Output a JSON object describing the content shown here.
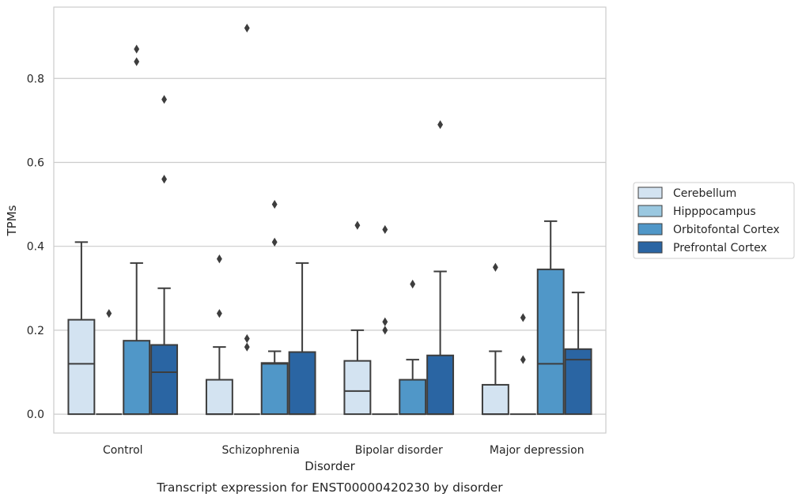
{
  "chart_data": {
    "type": "box",
    "title": "",
    "caption": "Transcript expression for ENST00000420230 by disorder",
    "xlabel": "Disorder",
    "ylabel": "TPMs",
    "ylim": [
      -0.045,
      0.97
    ],
    "yticks": [
      0.0,
      0.2,
      0.4,
      0.6,
      0.8
    ],
    "ytick_labels": [
      "0.0",
      "0.2",
      "0.4",
      "0.6",
      "0.8"
    ],
    "grid": "horizontal",
    "legend": {
      "placement": "right"
    },
    "categories": [
      "Control",
      "Schizophrenia",
      "Bipolar disorder",
      "Major depression"
    ],
    "series": [
      {
        "name": "Cerebellum",
        "color": "#d3e3f1",
        "boxes": [
          {
            "q1": 0.0,
            "median": 0.12,
            "q3": 0.225,
            "whisker_low": 0.0,
            "whisker_high": 0.41,
            "outliers": []
          },
          {
            "q1": 0.0,
            "median": 0.0,
            "q3": 0.082,
            "whisker_low": 0.0,
            "whisker_high": 0.16,
            "outliers": [
              0.24,
              0.37
            ]
          },
          {
            "q1": 0.0,
            "median": 0.055,
            "q3": 0.127,
            "whisker_low": 0.0,
            "whisker_high": 0.2,
            "outliers": [
              0.45
            ]
          },
          {
            "q1": 0.0,
            "median": 0.0,
            "q3": 0.07,
            "whisker_low": 0.0,
            "whisker_high": 0.15,
            "outliers": [
              0.35
            ]
          }
        ]
      },
      {
        "name": "Hipppocampus",
        "color": "#9ac8e0",
        "boxes": [
          {
            "q1": 0.0,
            "median": 0.0,
            "q3": 0.0,
            "whisker_low": 0.0,
            "whisker_high": 0.0,
            "outliers": [
              0.24
            ]
          },
          {
            "q1": 0.0,
            "median": 0.0,
            "q3": 0.0,
            "whisker_low": 0.0,
            "whisker_high": 0.0,
            "outliers": [
              0.16,
              0.18,
              0.92
            ]
          },
          {
            "q1": 0.0,
            "median": 0.0,
            "q3": 0.0,
            "whisker_low": 0.0,
            "whisker_high": 0.0,
            "outliers": [
              0.2,
              0.22,
              0.44
            ]
          },
          {
            "q1": 0.0,
            "median": 0.0,
            "q3": 0.0,
            "whisker_low": 0.0,
            "whisker_high": 0.0,
            "outliers": [
              0.13,
              0.23
            ]
          }
        ]
      },
      {
        "name": "Orbitofontal Cortex",
        "color": "#5097c8",
        "boxes": [
          {
            "q1": 0.0,
            "median": 0.0,
            "q3": 0.175,
            "whisker_low": 0.0,
            "whisker_high": 0.36,
            "outliers": [
              0.84,
              0.87
            ]
          },
          {
            "q1": 0.0,
            "median": 0.12,
            "q3": 0.122,
            "whisker_low": 0.0,
            "whisker_high": 0.15,
            "outliers": [
              0.41,
              0.5
            ]
          },
          {
            "q1": 0.0,
            "median": 0.0,
            "q3": 0.082,
            "whisker_low": 0.0,
            "whisker_high": 0.13,
            "outliers": [
              0.31
            ]
          },
          {
            "q1": 0.0,
            "median": 0.12,
            "q3": 0.345,
            "whisker_low": 0.0,
            "whisker_high": 0.46,
            "outliers": []
          }
        ]
      },
      {
        "name": "Prefrontal Cortex",
        "color": "#2a65a3",
        "boxes": [
          {
            "q1": 0.0,
            "median": 0.1,
            "q3": 0.165,
            "whisker_low": 0.0,
            "whisker_high": 0.3,
            "outliers": [
              0.56,
              0.75
            ]
          },
          {
            "q1": 0.0,
            "median": 0.0,
            "q3": 0.148,
            "whisker_low": 0.0,
            "whisker_high": 0.36,
            "outliers": []
          },
          {
            "q1": 0.0,
            "median": 0.0,
            "q3": 0.14,
            "whisker_low": 0.0,
            "whisker_high": 0.34,
            "outliers": [
              0.69
            ]
          },
          {
            "q1": 0.0,
            "median": 0.13,
            "q3": 0.155,
            "whisker_low": 0.0,
            "whisker_high": 0.29,
            "outliers": []
          }
        ]
      }
    ]
  }
}
